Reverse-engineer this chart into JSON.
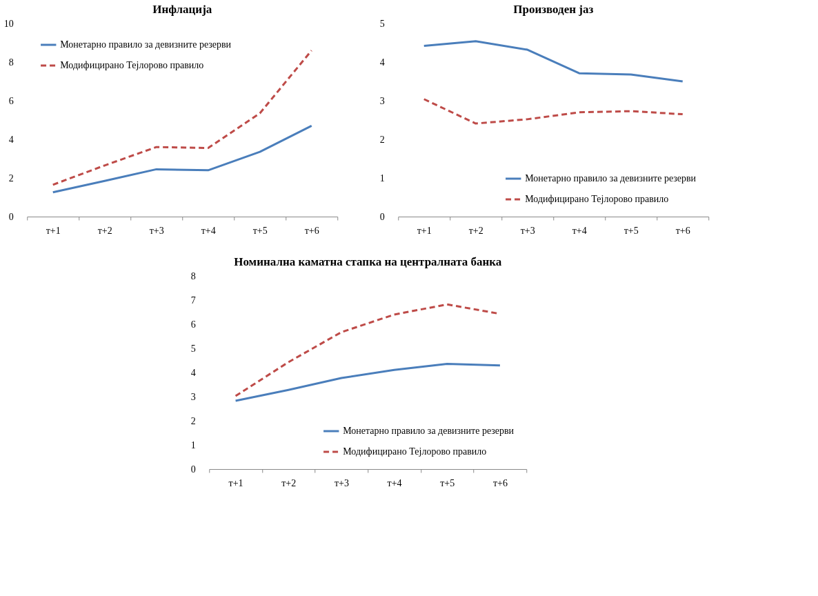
{
  "chart_data": [
    {
      "type": "line",
      "title": "Инфлација",
      "categories": [
        "т+1",
        "т+2",
        "т+3",
        "т+4",
        "т+5",
        "т+6"
      ],
      "ylim": [
        0,
        10
      ],
      "yticks": [
        0,
        2,
        4,
        6,
        8,
        10
      ],
      "grid": false,
      "legend": "top left",
      "marker": "none",
      "series": [
        {
          "name": "Монетарно правило за девизните резерви",
          "color": "#4a7ebb",
          "line_style": "solid",
          "values": [
            1.26,
            1.85,
            2.45,
            2.4,
            3.35,
            4.7
          ]
        },
        {
          "name": "Модифицирано Тејлорово правило",
          "color": "#be4b48",
          "line_style": "dashed",
          "values": [
            1.65,
            2.65,
            3.6,
            3.55,
            5.35,
            8.6
          ]
        }
      ]
    },
    {
      "type": "line",
      "title": "Производен јаз",
      "categories": [
        "т+1",
        "т+2",
        "т+3",
        "т+4",
        "т+5",
        "т+6"
      ],
      "ylim": [
        0,
        5
      ],
      "yticks": [
        0,
        1,
        2,
        3,
        4,
        5
      ],
      "grid": false,
      "legend": "bottom right",
      "marker": "none",
      "series": [
        {
          "name": "Монетарно правило за девизните резерви",
          "color": "#4a7ebb",
          "line_style": "solid",
          "values": [
            4.42,
            4.54,
            4.32,
            3.71,
            3.68,
            3.5
          ]
        },
        {
          "name": "Модифицирано Тејлорово правило",
          "color": "#be4b48",
          "line_style": "dashed",
          "values": [
            3.04,
            2.41,
            2.52,
            2.7,
            2.73,
            2.65
          ]
        }
      ]
    },
    {
      "type": "line",
      "title": "Номинална каматна стапка на централната банка",
      "categories": [
        "т+1",
        "т+2",
        "т+3",
        "т+4",
        "т+5",
        "т+6"
      ],
      "ylim": [
        0,
        8
      ],
      "yticks": [
        0,
        1,
        2,
        3,
        4,
        5,
        6,
        7,
        8
      ],
      "grid": false,
      "legend": "bottom right",
      "marker": "none",
      "series": [
        {
          "name": "Монетарно правило за девизните резерви",
          "color": "#4a7ebb",
          "line_style": "solid",
          "values": [
            2.83,
            3.28,
            3.77,
            4.11,
            4.36,
            4.29
          ]
        },
        {
          "name": "Модифицирано Тејлорово правило",
          "color": "#be4b48",
          "line_style": "dashed",
          "values": [
            3.03,
            4.43,
            5.67,
            6.4,
            6.82,
            6.43
          ]
        }
      ]
    }
  ]
}
